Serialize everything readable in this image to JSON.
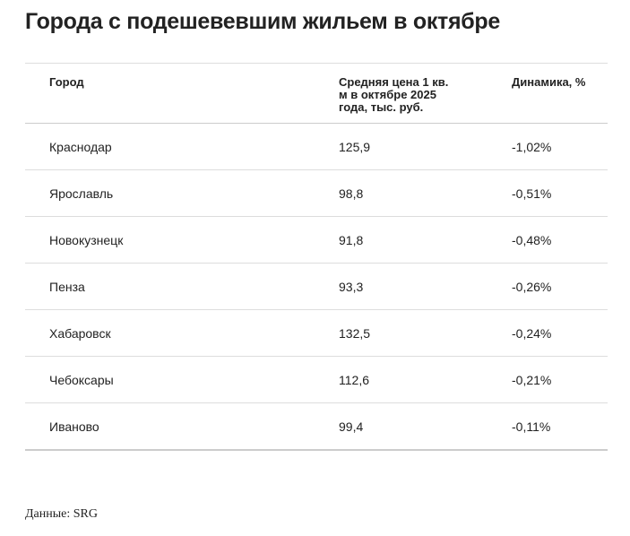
{
  "header": {
    "title": "Города с подешевевшим жильем в октябре"
  },
  "table": {
    "columns": [
      "Город",
      "Средняя цена 1 кв. м в октябре 2025 года, тыс. руб.",
      "Динамика, %"
    ],
    "rows": [
      [
        "Краснодар",
        "125,9",
        "-1,02%"
      ],
      [
        "Ярославль",
        "98,8",
        "-0,51%"
      ],
      [
        "Новокузнецк",
        "91,8",
        "-0,48%"
      ],
      [
        "Пенза",
        "93,3",
        "-0,26%"
      ],
      [
        "Хабаровск",
        "132,5",
        "-0,24%"
      ],
      [
        "Чебоксары",
        "112,6",
        "-0,21%"
      ],
      [
        "Иваново",
        "99,4",
        "-0,11%"
      ]
    ]
  },
  "footer": {
    "source": "Данные: SRG"
  }
}
